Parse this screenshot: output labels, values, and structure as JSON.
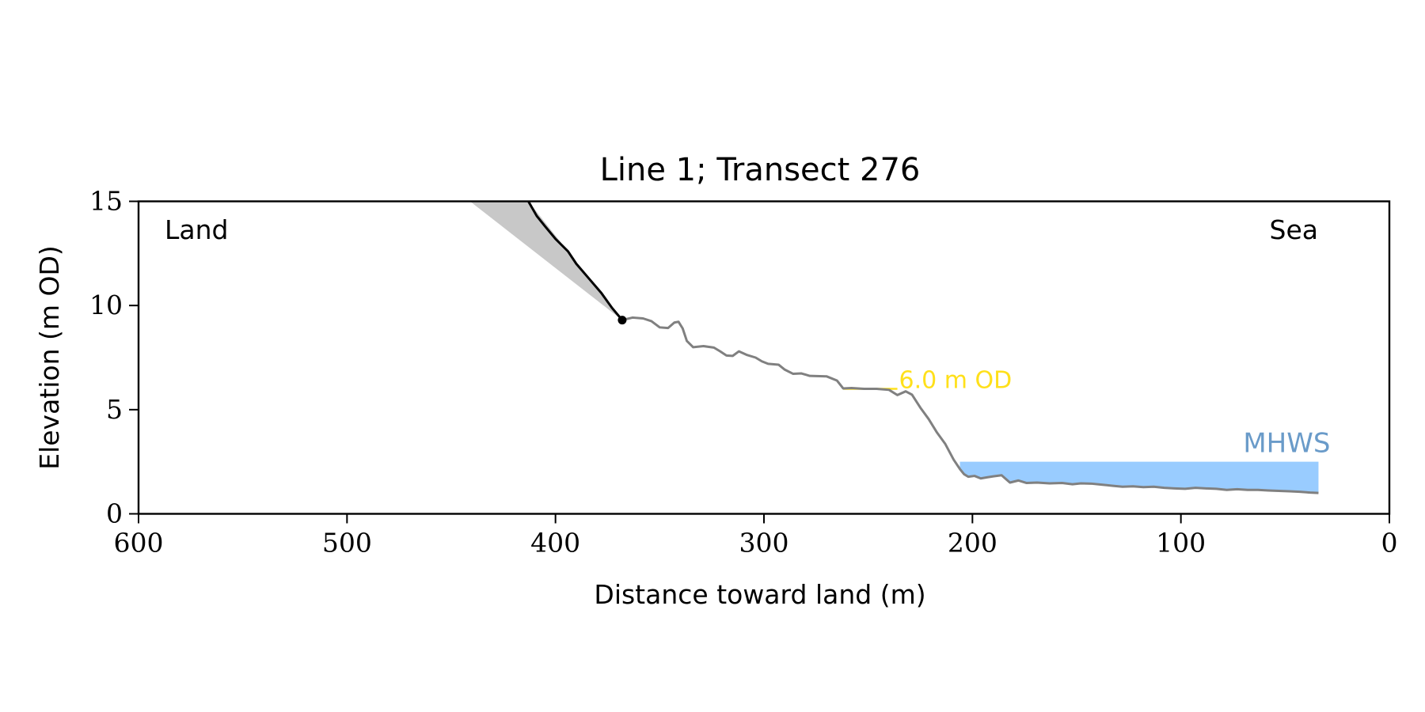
{
  "chart_data": {
    "type": "line",
    "title": "Line 1; Transect 276",
    "xlabel": "Distance toward land (m)",
    "ylabel": "Elevation (m OD)",
    "xlim": [
      600,
      0
    ],
    "ylim": [
      0,
      15
    ],
    "x_inverted": true,
    "xticks": [
      600,
      500,
      400,
      300,
      200,
      100,
      0
    ],
    "yticks": [
      0,
      5,
      10,
      15
    ],
    "grid": false,
    "annotations": {
      "land": "Land",
      "sea": "Sea",
      "level_label": "6.0 m OD",
      "mhws_label": "MHWS"
    },
    "colors": {
      "profile": "#808080",
      "cliff": "#000000",
      "cliff_fill": "#c8c8c8",
      "level_line": "#ffe01a",
      "mhws_fill": "#99ccff",
      "mhws_text": "#6a9bc9"
    },
    "level_line": {
      "y": 6.0,
      "x_from": 262,
      "x_to": 236
    },
    "mhws": {
      "y": 2.5,
      "x_from": 206,
      "x_to": 34
    },
    "cliff_top": {
      "x": 368,
      "y": 9.3
    },
    "cliff_fill_poly": [
      [
        441,
        15
      ],
      [
        413,
        15
      ],
      [
        368,
        9.3
      ]
    ],
    "cliff": [
      [
        413,
        15.0
      ],
      [
        409,
        14.3
      ],
      [
        405,
        13.8
      ],
      [
        400,
        13.2
      ],
      [
        394,
        12.6
      ],
      [
        390,
        12.0
      ],
      [
        384,
        11.3
      ],
      [
        378,
        10.6
      ],
      [
        373,
        9.9
      ],
      [
        368,
        9.3
      ]
    ],
    "profile": [
      [
        368,
        9.3
      ],
      [
        363,
        9.42
      ],
      [
        358,
        9.38
      ],
      [
        354,
        9.25
      ],
      [
        350,
        8.95
      ],
      [
        346,
        8.92
      ],
      [
        343,
        9.18
      ],
      [
        341,
        9.22
      ],
      [
        339,
        8.9
      ],
      [
        337,
        8.3
      ],
      [
        334,
        8.0
      ],
      [
        329,
        8.05
      ],
      [
        324,
        7.98
      ],
      [
        321,
        7.8
      ],
      [
        318,
        7.6
      ],
      [
        315,
        7.58
      ],
      [
        312,
        7.8
      ],
      [
        308,
        7.62
      ],
      [
        304,
        7.5
      ],
      [
        301,
        7.32
      ],
      [
        298,
        7.2
      ],
      [
        293,
        7.16
      ],
      [
        290,
        6.92
      ],
      [
        286,
        6.72
      ],
      [
        282,
        6.74
      ],
      [
        278,
        6.62
      ],
      [
        270,
        6.6
      ],
      [
        265,
        6.4
      ],
      [
        262,
        6.02
      ],
      [
        258,
        6.04
      ],
      [
        252,
        6.0
      ],
      [
        246,
        6.0
      ],
      [
        240,
        5.95
      ],
      [
        236,
        5.7
      ],
      [
        232,
        5.88
      ],
      [
        229,
        5.72
      ],
      [
        225,
        5.1
      ],
      [
        221,
        4.55
      ],
      [
        217,
        3.9
      ],
      [
        213,
        3.35
      ],
      [
        209,
        2.6
      ],
      [
        206,
        2.15
      ],
      [
        204,
        1.9
      ],
      [
        202,
        1.78
      ],
      [
        199,
        1.82
      ],
      [
        196,
        1.7
      ],
      [
        193,
        1.75
      ],
      [
        190,
        1.8
      ],
      [
        186,
        1.85
      ],
      [
        182,
        1.5
      ],
      [
        178,
        1.6
      ],
      [
        174,
        1.48
      ],
      [
        169,
        1.5
      ],
      [
        163,
        1.46
      ],
      [
        157,
        1.48
      ],
      [
        152,
        1.42
      ],
      [
        148,
        1.46
      ],
      [
        143,
        1.45
      ],
      [
        138,
        1.4
      ],
      [
        133,
        1.35
      ],
      [
        128,
        1.3
      ],
      [
        123,
        1.32
      ],
      [
        118,
        1.28
      ],
      [
        113,
        1.3
      ],
      [
        108,
        1.25
      ],
      [
        103,
        1.22
      ],
      [
        98,
        1.2
      ],
      [
        93,
        1.25
      ],
      [
        88,
        1.22
      ],
      [
        83,
        1.2
      ],
      [
        78,
        1.15
      ],
      [
        73,
        1.18
      ],
      [
        68,
        1.15
      ],
      [
        63,
        1.15
      ],
      [
        58,
        1.12
      ],
      [
        53,
        1.1
      ],
      [
        48,
        1.08
      ],
      [
        43,
        1.06
      ],
      [
        38,
        1.02
      ],
      [
        34,
        1.0
      ]
    ]
  }
}
